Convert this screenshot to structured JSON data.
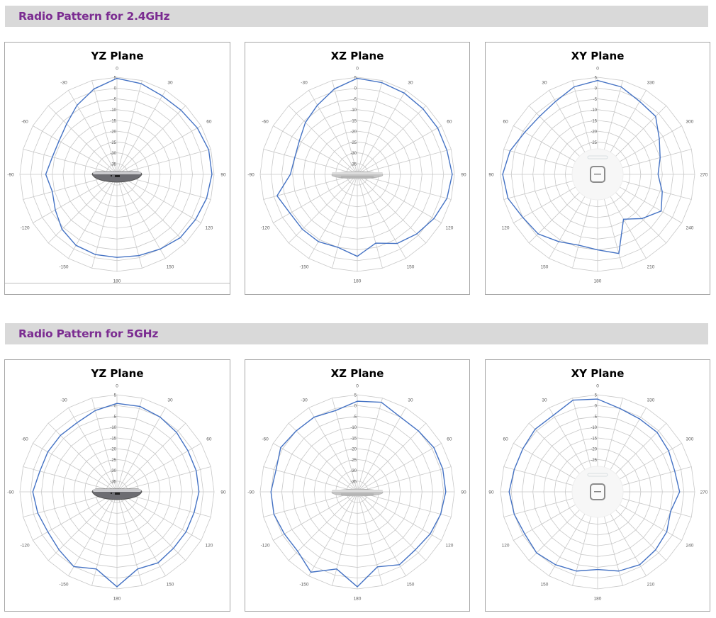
{
  "sections": [
    {
      "label": "Radio Pattern for 2.4GHz"
    },
    {
      "label": "Radio Pattern for 5GHz"
    }
  ],
  "colors": {
    "accent": "#7b2c91",
    "bar_bg": "#d9d9d9",
    "series": "#4472c4",
    "grid": "#c8c8c8"
  },
  "chart_data": [
    {
      "type": "polar",
      "band": "2.4GHz",
      "title": "YZ Plane",
      "direction": "clockwise",
      "angle_labels": [
        "0",
        "30",
        "60",
        "90",
        "120",
        "150",
        "180",
        "-150",
        "-120",
        "-90",
        "-60",
        "-30"
      ],
      "radial_ticks": [
        5,
        0,
        -5,
        -10,
        -15,
        -20,
        -25,
        -30,
        -35
      ],
      "rlim": [
        -40,
        5
      ],
      "angles": [
        0,
        15,
        30,
        45,
        60,
        75,
        90,
        105,
        120,
        135,
        150,
        165,
        180,
        195,
        210,
        225,
        240,
        255,
        270,
        285,
        300,
        315,
        330,
        345
      ],
      "values": [
        4.5,
        3.5,
        2,
        2,
        3,
        4,
        4,
        3,
        2,
        1.5,
        0,
        -1,
        -1.5,
        -1.5,
        -2,
        -4,
        -7,
        -9,
        -7,
        -9,
        -9,
        -7,
        -3,
        1
      ]
    },
    {
      "type": "polar",
      "band": "2.4GHz",
      "title": "XZ Plane",
      "direction": "clockwise",
      "angle_labels": [
        "0",
        "30",
        "60",
        "90",
        "120",
        "150",
        "180",
        "-150",
        "-120",
        "-90",
        "-60",
        "-30"
      ],
      "radial_ticks": [
        5,
        0,
        -5,
        -10,
        -15,
        -20,
        -25,
        -30,
        -35
      ],
      "rlim": [
        -40,
        5
      ],
      "angles": [
        0,
        15,
        30,
        45,
        60,
        75,
        90,
        105,
        120,
        135,
        150,
        165,
        180,
        195,
        210,
        225,
        240,
        255,
        270,
        285,
        300,
        315,
        330,
        345
      ],
      "values": [
        4.5,
        4,
        3.5,
        3,
        3,
        3,
        4,
        3,
        1,
        -1,
        -3,
        -7,
        -2,
        -5,
        -4,
        -4,
        -4,
        -1.5,
        -9,
        -10,
        -9,
        -6,
        -3,
        1
      ]
    },
    {
      "type": "polar",
      "band": "2.4GHz",
      "title": "XY Plane",
      "direction": "counterclockwise",
      "angle_labels": [
        "0",
        "30",
        "60",
        "90",
        "120",
        "150",
        "180",
        "210",
        "240",
        "270",
        "300",
        "330"
      ],
      "radial_ticks": [
        5,
        0,
        -5,
        -10,
        -15,
        -20,
        -25
      ],
      "rlim": [
        -40,
        5
      ],
      "angles": [
        0,
        15,
        30,
        45,
        60,
        75,
        90,
        105,
        120,
        135,
        150,
        165,
        180,
        195,
        210,
        225,
        240,
        255,
        270,
        285,
        300,
        315,
        330,
        345
      ],
      "values": [
        3.5,
        2,
        -1,
        -2,
        -1,
        2,
        4,
        3,
        0,
        -1,
        -4,
        -6,
        -5,
        -2,
        -16,
        -11,
        -6,
        -9,
        -12,
        -10,
        -7,
        -2,
        -1,
        2
      ]
    },
    {
      "type": "polar",
      "band": "5GHz",
      "title": "YZ Plane",
      "direction": "clockwise",
      "angle_labels": [
        "0",
        "30",
        "60",
        "90",
        "120",
        "150",
        "180",
        "-150",
        "-120",
        "-90",
        "-60",
        "-30"
      ],
      "radial_ticks": [
        5,
        0,
        -5,
        -10,
        -15,
        -20,
        -25,
        -30,
        -35
      ],
      "rlim": [
        -40,
        5
      ],
      "angles": [
        0,
        15,
        30,
        45,
        60,
        75,
        90,
        105,
        120,
        135,
        150,
        165,
        180,
        195,
        210,
        225,
        240,
        255,
        270,
        285,
        300,
        315,
        330,
        345
      ],
      "values": [
        1,
        1,
        0,
        -1,
        -2,
        -2,
        -2,
        -3,
        -3,
        -3,
        -2,
        -3,
        4,
        -3,
        0,
        -2,
        -3,
        -2,
        -1,
        -3,
        -3,
        -3,
        -3,
        -1
      ]
    },
    {
      "type": "polar",
      "band": "5GHz",
      "title": "XZ Plane",
      "direction": "clockwise",
      "angle_labels": [
        "0",
        "30",
        "60",
        "90",
        "120",
        "150",
        "180",
        "-150",
        "-120",
        "-90",
        "-60",
        "-30"
      ],
      "radial_ticks": [
        5,
        0,
        -5,
        -10,
        -15,
        -20,
        -25,
        -30,
        -35
      ],
      "rlim": [
        -40,
        5
      ],
      "angles": [
        0,
        15,
        30,
        45,
        60,
        75,
        90,
        105,
        120,
        135,
        150,
        165,
        180,
        195,
        210,
        225,
        240,
        255,
        270,
        285,
        300,
        315,
        330,
        345
      ],
      "values": [
        2,
        3,
        0,
        0,
        1,
        1,
        1,
        0,
        -1,
        -2,
        -1,
        -4,
        4,
        -3,
        3,
        -1,
        -1,
        0,
        0,
        -1,
        1,
        0,
        0,
        -1
      ]
    },
    {
      "type": "polar",
      "band": "5GHz",
      "title": "XY Plane",
      "direction": "counterclockwise",
      "angle_labels": [
        "0",
        "30",
        "60",
        "90",
        "120",
        "150",
        "180",
        "210",
        "240",
        "270",
        "300",
        "330"
      ],
      "radial_ticks": [
        5,
        0,
        -5,
        -10,
        -15,
        -20,
        -25
      ],
      "rlim": [
        -40,
        5
      ],
      "angles": [
        0,
        15,
        30,
        45,
        60,
        75,
        90,
        105,
        120,
        135,
        150,
        165,
        180,
        195,
        210,
        225,
        240,
        255,
        270,
        285,
        300,
        315,
        330,
        345
      ],
      "values": [
        3,
        4,
        1,
        1,
        0,
        0,
        1,
        0,
        -1,
        0,
        -1,
        -2,
        -4,
        -2,
        -1,
        -2,
        -3,
        -5,
        -2,
        -3,
        -2,
        -1,
        -1,
        0
      ]
    }
  ]
}
